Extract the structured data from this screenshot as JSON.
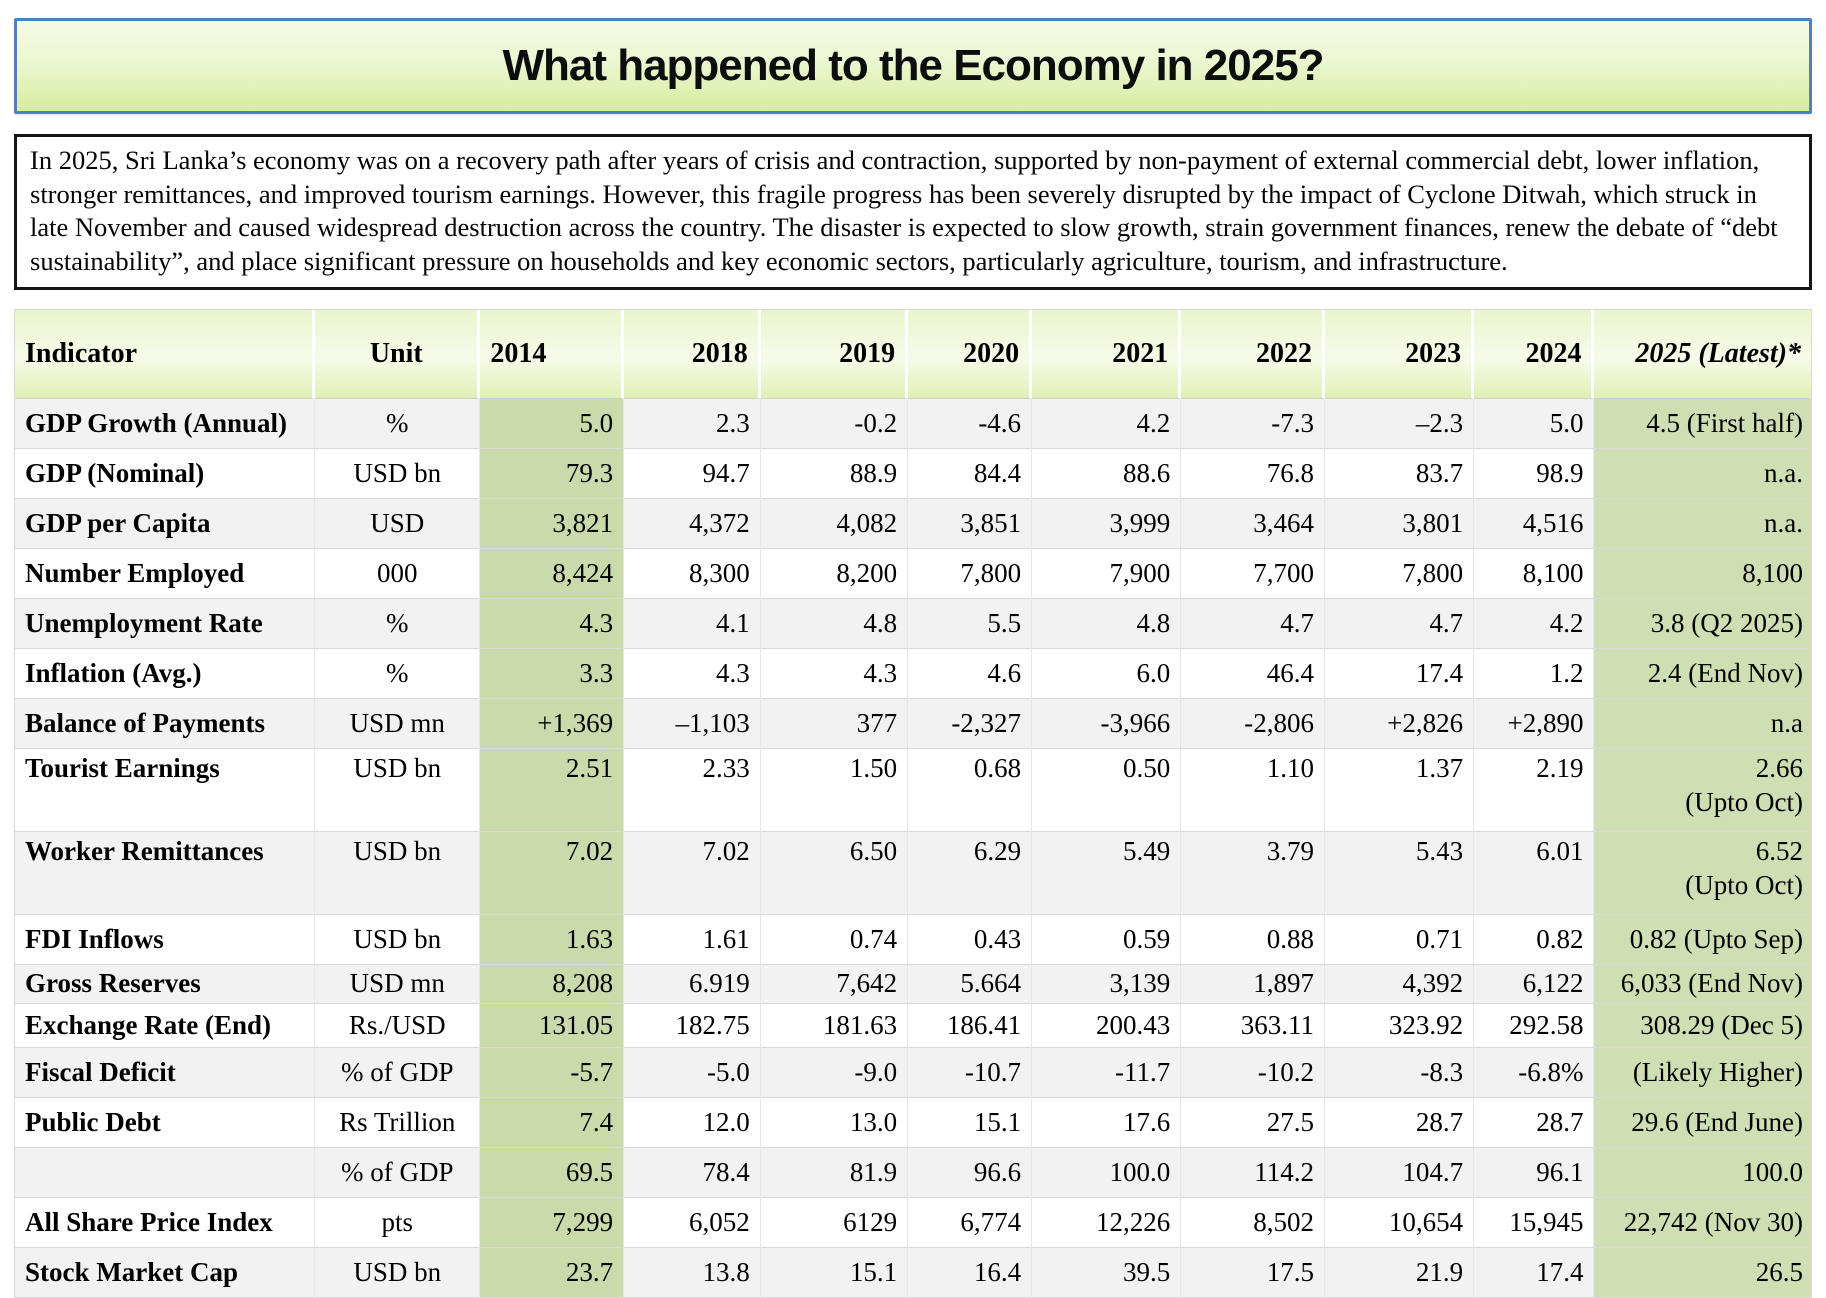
{
  "title": "What happened to the Economy in 2025?",
  "intro": "In 2025, Sri Lanka’s economy was on a recovery path after years of crisis and contraction, supported by non-payment of external commercial debt, lower inflation, stronger remittances, and improved tourism earnings. However, this fragile progress has been severely disrupted by the impact of Cyclone Ditwah, which struck in late November and caused widespread destruction across the country. The disaster is expected to slow growth, strain government finances, renew the debate of “debt sustainability”, and place significant pressure on households and key economic sectors, particularly agriculture, tourism, and infrastructure.",
  "colors": {
    "title_border": "#4f81bd",
    "banner_green": "#d8ec9e",
    "header_green": "#dff0b5",
    "col_2014_green": "#cadaab",
    "col_2025_green": "#cfdeb3",
    "stripe_gray": "#f2f2f2"
  },
  "table": {
    "columns": [
      "Indicator",
      "Unit",
      "2014",
      "2018",
      "2019",
      "2020",
      "2021",
      "2022",
      "2023",
      "2024",
      "2025 (Latest)*"
    ],
    "rows": [
      {
        "indicator": "GDP Growth (Annual)",
        "unit": "%",
        "values": [
          "5.0",
          "2.3",
          "-0.2",
          "-4.6",
          "4.2",
          "-7.3",
          "–2.3",
          "5.0",
          "4.5 (First half)"
        ]
      },
      {
        "indicator": "GDP (Nominal)",
        "unit": "USD bn",
        "values": [
          "79.3",
          "94.7",
          "88.9",
          "84.4",
          "88.6",
          "76.8",
          "83.7",
          "98.9",
          "n.a."
        ]
      },
      {
        "indicator": "GDP per Capita",
        "unit": "USD",
        "values": [
          "3,821",
          "4,372",
          "4,082",
          "3,851",
          "3,999",
          "3,464",
          "3,801",
          "4,516",
          "n.a."
        ]
      },
      {
        "indicator": "Number Employed",
        "unit": "000",
        "values": [
          "8,424",
          "8,300",
          "8,200",
          "7,800",
          "7,900",
          "7,700",
          "7,800",
          "8,100",
          "8,100"
        ]
      },
      {
        "indicator": "Unemployment Rate",
        "unit": "%",
        "values": [
          "4.3",
          "4.1",
          "4.8",
          "5.5",
          "4.8",
          "4.7",
          "4.7",
          "4.2",
          "3.8 (Q2 2025)"
        ]
      },
      {
        "indicator": "Inflation (Avg.)",
        "unit": "%",
        "values": [
          "3.3",
          "4.3",
          "4.3",
          "4.6",
          "6.0",
          "46.4",
          "17.4",
          "1.2",
          "2.4 (End Nov)"
        ]
      },
      {
        "indicator": "Balance of Payments",
        "unit": "USD mn",
        "values": [
          "+1,369",
          "–1,103",
          "377",
          "-2,327",
          "-3,966",
          "-2,806",
          "+2,826",
          "+2,890",
          "n.a"
        ]
      },
      {
        "indicator": "Tourist Earnings",
        "unit": "USD bn",
        "values": [
          "2.51",
          "2.33",
          "1.50",
          "0.68",
          "0.50",
          "1.10",
          "1.37",
          "2.19",
          "2.66\n(Upto Oct)"
        ]
      },
      {
        "indicator": "Worker Remittances",
        "unit": "USD bn",
        "values": [
          "7.02",
          "7.02",
          "6.50",
          "6.29",
          "5.49",
          "3.79",
          "5.43",
          "6.01",
          "6.52\n(Upto Oct)"
        ]
      },
      {
        "indicator": "FDI Inflows",
        "unit": "USD bn",
        "values": [
          "1.63",
          "1.61",
          "0.74",
          "0.43",
          "0.59",
          "0.88",
          "0.71",
          "0.82",
          "0.82 (Upto Sep)"
        ]
      },
      {
        "indicator": "Gross Reserves",
        "unit": "USD mn",
        "values": [
          "8,208",
          "6.919",
          "7,642",
          "5.664",
          "3,139",
          "1,897",
          "4,392",
          "6,122",
          "6,033 (End Nov)"
        ]
      },
      {
        "indicator": "Exchange Rate (End)",
        "unit": "Rs./USD",
        "values": [
          "131.05",
          "182.75",
          "181.63",
          "186.41",
          "200.43",
          "363.11",
          "323.92",
          "292.58",
          "308.29 (Dec 5)"
        ]
      },
      {
        "indicator": "Fiscal Deficit",
        "unit": "% of GDP",
        "values": [
          "-5.7",
          "-5.0",
          "-9.0",
          "-10.7",
          "-11.7",
          "-10.2",
          "-8.3",
          "-6.8%",
          "(Likely Higher)"
        ]
      },
      {
        "indicator": "Public Debt",
        "unit": "Rs Trillion",
        "values": [
          "7.4",
          "12.0",
          "13.0",
          "15.1",
          "17.6",
          "27.5",
          "28.7",
          "28.7",
          "29.6 (End June)"
        ]
      },
      {
        "indicator": "",
        "unit": "% of GDP",
        "values": [
          "69.5",
          "78.4",
          "81.9",
          "96.6",
          "100.0",
          "114.2",
          "104.7",
          "96.1",
          "100.0"
        ]
      },
      {
        "indicator": "All Share Price Index",
        "unit": "pts",
        "values": [
          "7,299",
          "6,052",
          "6129",
          "6,774",
          "12,226",
          "8,502",
          "10,654",
          "15,945",
          "22,742 (Nov 30)"
        ]
      },
      {
        "indicator": "Stock Market Cap",
        "unit": "USD bn",
        "values": [
          "23.7",
          "13.8",
          "15.1",
          "16.4",
          "39.5",
          "17.5",
          "21.9",
          "17.4",
          "26.5"
        ]
      }
    ]
  }
}
